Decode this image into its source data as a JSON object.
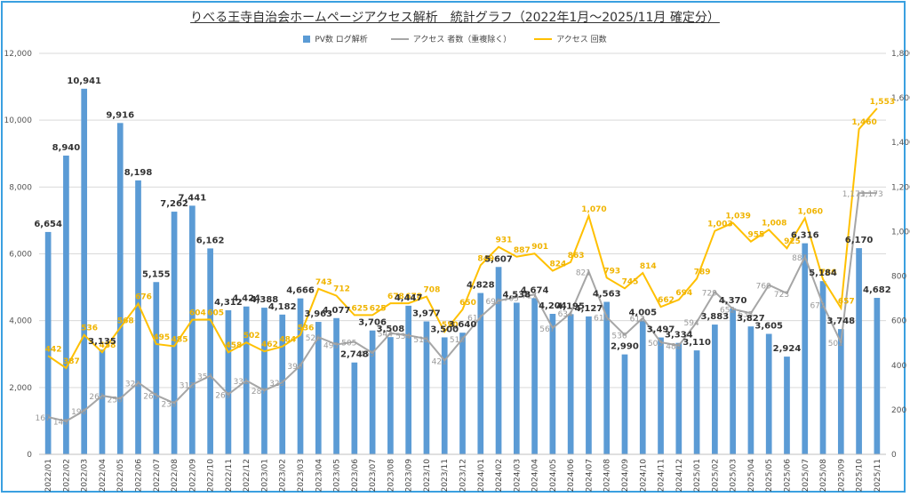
{
  "chart_data": {
    "type": "bar",
    "title": "りべる王寺自治会ホームページアクセス解析　統計グラフ（2022年1月～2025/11月 確定分）",
    "categories": [
      "2022/01",
      "2022/02",
      "2022/03",
      "2022/04",
      "2022/05",
      "2022/06",
      "2022/07",
      "2022/08",
      "2022/09",
      "2022/10",
      "2022/11",
      "2022/12",
      "2023/01",
      "2023/02",
      "2023/03",
      "2023/04",
      "2023/05",
      "2023/06",
      "2023/07",
      "2023/08",
      "2023/09",
      "2023/10",
      "2023/11",
      "2023/12",
      "2024/01",
      "2024/02",
      "2024/03",
      "2024/04",
      "2024/05",
      "2024/06",
      "2024/07",
      "2024/08",
      "2024/09",
      "2024/10",
      "2024/11",
      "2024/12",
      "2025/01",
      "2025/02",
      "2025/03",
      "2025/04",
      "2025/05",
      "2025/06",
      "2025/07",
      "2025/08",
      "2025/09",
      "2025/10",
      "2025/11"
    ],
    "series": [
      {
        "name": "PV数 ログ解析",
        "type": "bar",
        "axis": "left",
        "color": "#5b9bd5",
        "values": [
          6654,
          8940,
          10941,
          3135,
          9916,
          8198,
          5155,
          7262,
          7441,
          6162,
          4312,
          4424,
          4388,
          4182,
          4666,
          3963,
          4077,
          2748,
          3706,
          3508,
          4447,
          3977,
          3500,
          3640,
          4828,
          5607,
          4538,
          4674,
          4204,
          4195,
          4127,
          4563,
          2990,
          4005,
          3497,
          3334,
          3110,
          3883,
          4370,
          3827,
          3605,
          2924,
          6316,
          5184,
          3748,
          6170,
          4682
        ]
      },
      {
        "name": "アクセス 者数（重複除く）",
        "type": "line",
        "axis": "right",
        "color": "#a6a6a6",
        "values": [
          167,
          149,
          196,
          263,
          250,
          322,
          265,
          230,
          313,
          353,
          269,
          331,
          287,
          323,
          399,
          526,
          493,
          505,
          455,
          544,
          534,
          518,
          421,
          518,
          617,
          690,
          705,
          717,
          567,
          634,
          821,
          616,
          536,
          612,
          503,
          488,
          594,
          729,
          652,
          633,
          760,
          723,
          887,
          672,
          502,
          1173,
          1173
        ]
      },
      {
        "name": "アクセス 回数",
        "type": "line",
        "axis": "right",
        "color": "#ffc000",
        "values": [
          442,
          387,
          536,
          458,
          568,
          676,
          495,
          485,
          604,
          605,
          458,
          502,
          462,
          484,
          536,
          743,
          712,
          625,
          625,
          678,
          678,
          708,
          550,
          650,
          849,
          931,
          887,
          901,
          824,
          863,
          1070,
          793,
          745,
          814,
          662,
          694,
          789,
          1003,
          1039,
          955,
          1008,
          925,
          1060,
          786,
          657,
          1460,
          1553
        ]
      }
    ],
    "y_left": {
      "ylim": [
        0,
        12000
      ],
      "ticks": [
        "0",
        "2,000",
        "4,000",
        "6,000",
        "8,000",
        "10,000",
        "12,000"
      ]
    },
    "y_right": {
      "ylim": [
        0,
        1800
      ],
      "ticks": [
        "0",
        "200",
        "400",
        "600",
        "800",
        "1,000",
        "1,200",
        "1,400",
        "1,600",
        "1,800"
      ]
    },
    "bar_labels": [
      "6,654",
      "8,940",
      "10,941",
      "3,135",
      "9,916",
      "8,198",
      "5,155",
      "7,262",
      "7,441",
      "6,162",
      "4,312",
      "4,424",
      "4,388",
      "4,182",
      "4,666",
      "3,963",
      "4,077",
      "2,748",
      "3,706",
      "3,508",
      "4,447",
      "3,977",
      "3,500",
      "3,640",
      "4,828",
      "5,607",
      "4,538",
      "4,674",
      "4,204",
      "4,195",
      "4,127",
      "4,563",
      "2,990",
      "4,005",
      "3,497",
      "3,334",
      "3,110",
      "3,883",
      "4,370",
      "3,827",
      "3,605",
      "2,924",
      "6,316",
      "5,184",
      "3,748",
      "6,170",
      "4,682"
    ],
    "ua_labels": [
      "167",
      "149",
      "196",
      "263",
      "250",
      "322",
      "265",
      "230",
      "313",
      "353",
      "269",
      "331",
      "287",
      "323",
      "399",
      "526",
      "493",
      "505",
      "455",
      "544",
      "534",
      "518",
      "421",
      "518",
      "617",
      "690",
      "705",
      "717",
      "567",
      "634",
      "821",
      "616",
      "536",
      "612",
      "503",
      "488",
      "594",
      "729",
      "652",
      "633",
      "760",
      "723",
      "887",
      "672",
      "502",
      "1,173",
      "1,173"
    ],
    "ac_labels": [
      "442",
      "387",
      "536",
      "458",
      "568",
      "676",
      "495",
      "485",
      "604",
      "605",
      "458",
      "502",
      "462",
      "484",
      "536",
      "743",
      "712",
      "625",
      "625",
      "678",
      "678",
      "708",
      "550",
      "650",
      "849",
      "931",
      "887",
      "901",
      "824",
      "863",
      "1,070",
      "793",
      "745",
      "814",
      "662",
      "694",
      "789",
      "1,003",
      "1,039",
      "955",
      "1,008",
      "925",
      "1,060",
      "786",
      "657",
      "1,460",
      "1,553"
    ],
    "legend_position": "top"
  }
}
